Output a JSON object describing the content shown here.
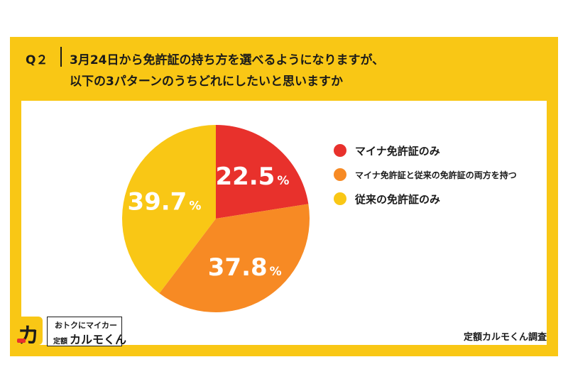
{
  "question": {
    "number": "Q２",
    "line1": "3月24日から免許証の持ち方を選べるようになりますが、",
    "line2": "以下の3パターンのうちどれにしたいと思いますか"
  },
  "chart_data": {
    "type": "pie",
    "unit": "%",
    "slices": [
      {
        "label": "マイナ免許証のみ",
        "value": 22.5,
        "color": "#e8312c"
      },
      {
        "label": "マイナ免許証と従来の免許証の両方を持つ",
        "value": 37.8,
        "color": "#f78a24"
      },
      {
        "label": "従来の免許証のみ",
        "value": 39.7,
        "color": "#f9c715"
      }
    ],
    "legend_placement": "right"
  },
  "logo": {
    "line1": "おトクにマイカー",
    "line2_prefix": "定額",
    "line2": "カルモくん",
    "glyph": "カ"
  },
  "source": "定額カルモくん調査"
}
